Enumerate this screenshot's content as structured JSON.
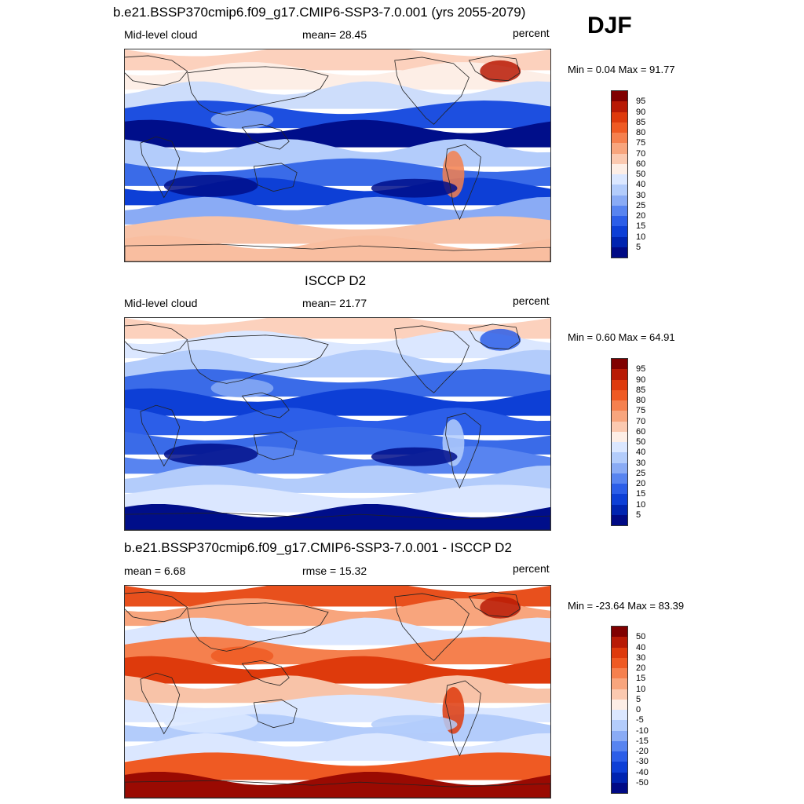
{
  "season": "DJF",
  "panels": [
    {
      "title": "b.e21.BSSP370cmip6.f09_g17.CMIP6-SSP3-7.0.001 (yrs 2055-2079)",
      "left_label": "Mid-level cloud",
      "center_label": "mean=  28.45",
      "right_label": "percent",
      "minmax": "Min =   0.04 Max =  91.77",
      "colorbar": {
        "ticks": [
          "95",
          "90",
          "85",
          "80",
          "75",
          "70",
          "60",
          "50",
          "40",
          "30",
          "25",
          "20",
          "15",
          "10",
          "5"
        ],
        "colors": [
          "#800000",
          "#b81a05",
          "#de3a0c",
          "#ef5a23",
          "#f5804e",
          "#f8a57d",
          "#fbc9b0",
          "#fdeee6",
          "#dbe7ff",
          "#b3ccfb",
          "#8aabf5",
          "#5884f0",
          "#2c5ee8",
          "#0d3fd6",
          "#0024b0",
          "#000a85"
        ]
      },
      "bands": [
        "#fcd1bd",
        "#fdeee6",
        "#cdddfb",
        "#1d4fe0",
        "#000e8a",
        "#b3ccfb",
        "#3a6be8",
        "#0d3fd6",
        "#8aabf5",
        "#f8c3a8",
        "#f9bea0"
      ]
    },
    {
      "title": "ISCCP D2",
      "left_label": "Mid-level cloud",
      "center_label": "mean=  21.77",
      "right_label": "percent",
      "minmax": "Min =   0.60 Max =  64.91",
      "colorbar": {
        "ticks": [
          "95",
          "90",
          "85",
          "80",
          "75",
          "70",
          "60",
          "50",
          "40",
          "30",
          "25",
          "20",
          "15",
          "10",
          "5"
        ],
        "colors": [
          "#800000",
          "#b81a05",
          "#de3a0c",
          "#ef5a23",
          "#f5804e",
          "#f8a57d",
          "#fbc9b0",
          "#fdeee6",
          "#dbe7ff",
          "#b3ccfb",
          "#8aabf5",
          "#5884f0",
          "#2c5ee8",
          "#0d3fd6",
          "#0024b0",
          "#000a85"
        ]
      },
      "bands": [
        "#fcd1bd",
        "#dbe7ff",
        "#b3ccfb",
        "#3a6be8",
        "#0d3fd6",
        "#2c5ee8",
        "#3a6be8",
        "#5884f0",
        "#b3ccfb",
        "#dbe7ff",
        "#000e8a"
      ]
    },
    {
      "title": "b.e21.BSSP370cmip6.f09_g17.CMIP6-SSP3-7.0.001 - ISCCP D2",
      "left_label": "mean =   6.68",
      "center_label": "rmse =  15.32",
      "right_label": "percent",
      "minmax": "Min = -23.64 Max =  83.39",
      "colorbar": {
        "ticks": [
          "50",
          "40",
          "30",
          "20",
          "15",
          "10",
          "5",
          "0",
          "-5",
          "-10",
          "-15",
          "-20",
          "-30",
          "-40",
          "-50"
        ],
        "colors": [
          "#800000",
          "#b81a05",
          "#de3a0c",
          "#ef5a23",
          "#f5804e",
          "#f8a57d",
          "#fbc9b0",
          "#fdeee6",
          "#dbe7ff",
          "#b3ccfb",
          "#8aabf5",
          "#5884f0",
          "#2c5ee8",
          "#0d3fd6",
          "#0024b0",
          "#000a85"
        ]
      },
      "bands": [
        "#e8501d",
        "#f8a57d",
        "#dbe7ff",
        "#f5804e",
        "#de3a0c",
        "#f8c3a8",
        "#dbe7ff",
        "#b3ccfb",
        "#dbe7ff",
        "#ef5a23",
        "#9a0a02"
      ]
    }
  ]
}
